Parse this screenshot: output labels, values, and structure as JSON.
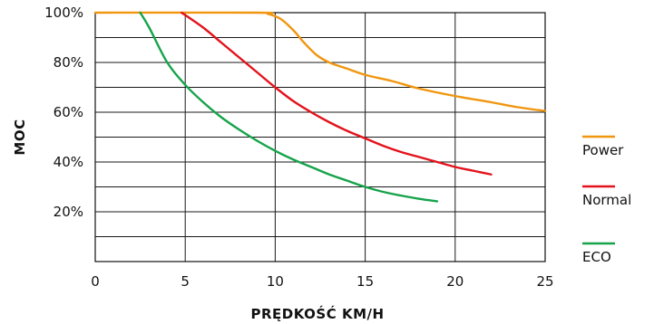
{
  "chart_data": {
    "type": "line",
    "title": "",
    "xlabel": "PRĘDKOŚĆ KM/H",
    "ylabel": "MOC",
    "xlim": [
      0,
      25
    ],
    "ylim": [
      0,
      100
    ],
    "x_ticks": [
      "0",
      "5",
      "10",
      "15",
      "20",
      "25"
    ],
    "y_ticks": [
      "20%",
      "40%",
      "60%",
      "80%",
      "100%"
    ],
    "y_tick_values": [
      20,
      40,
      60,
      80,
      100
    ],
    "grid": true,
    "legend_position": "right",
    "series": [
      {
        "name": "Power",
        "color": "#F0960F",
        "points": [
          [
            0,
            100
          ],
          [
            9,
            100
          ],
          [
            9.6,
            99.5
          ],
          [
            10.3,
            97.5
          ],
          [
            11,
            93
          ],
          [
            11.6,
            88
          ],
          [
            12.3,
            83
          ],
          [
            13,
            80
          ],
          [
            14,
            77.5
          ],
          [
            15,
            75
          ],
          [
            16.5,
            72.5
          ],
          [
            18,
            69.5
          ],
          [
            20,
            66.5
          ],
          [
            22,
            64
          ],
          [
            23.5,
            62
          ],
          [
            25,
            60.5
          ]
        ]
      },
      {
        "name": "Normal",
        "color": "#E3121B",
        "points": [
          [
            4.8,
            100
          ],
          [
            6,
            94
          ],
          [
            7,
            88
          ],
          [
            8,
            82
          ],
          [
            9,
            76
          ],
          [
            10,
            70
          ],
          [
            11,
            64.5
          ],
          [
            12,
            60
          ],
          [
            13,
            56
          ],
          [
            14,
            52.5
          ],
          [
            15,
            49.5
          ],
          [
            16,
            46.5
          ],
          [
            17,
            44
          ],
          [
            18,
            42
          ],
          [
            19,
            40
          ],
          [
            20,
            38
          ],
          [
            21,
            36.5
          ],
          [
            22,
            35
          ]
        ]
      },
      {
        "name": "ECO",
        "color": "#16A34A",
        "points": [
          [
            2.5,
            100
          ],
          [
            3,
            94
          ],
          [
            4,
            80
          ],
          [
            5,
            71
          ],
          [
            6,
            64
          ],
          [
            7,
            58
          ],
          [
            8,
            53
          ],
          [
            9,
            48.5
          ],
          [
            10,
            44.5
          ],
          [
            11,
            41
          ],
          [
            12,
            38
          ],
          [
            13,
            35
          ],
          [
            14,
            32.5
          ],
          [
            15,
            30
          ],
          [
            16,
            28
          ],
          [
            17,
            26.5
          ],
          [
            18,
            25.2
          ],
          [
            19,
            24.2
          ]
        ]
      }
    ]
  }
}
